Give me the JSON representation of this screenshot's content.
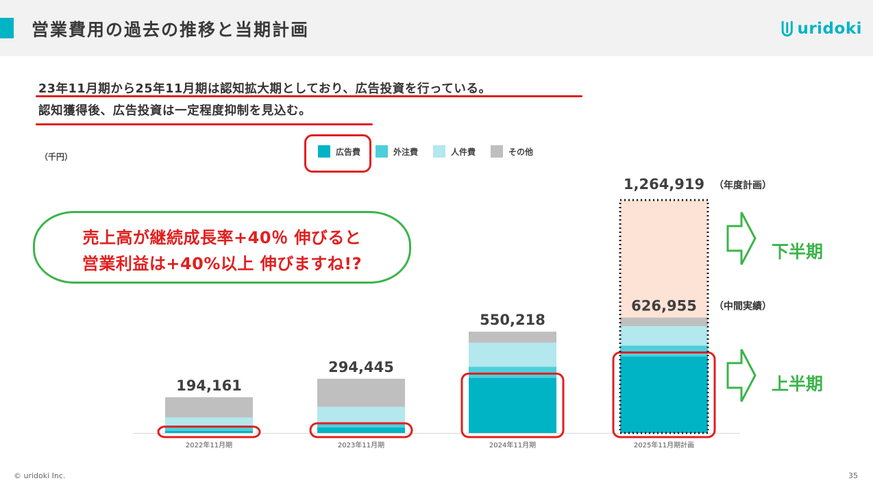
{
  "header": {
    "title": "営業費用の過去の推移と当期計画",
    "brand": "uridoki",
    "accent_color": "#00b4c5",
    "logo_icon": "uridoki-logo-icon"
  },
  "intro": {
    "line1": "23年11月期から25年11月期は認知拡大期としており、広告投資を行っている。",
    "line2": "認知獲得後、広告投資は一定程度抑制を見込む。"
  },
  "highlight_color": "#e02020",
  "callout": {
    "line1": "売上高が継続成長率+40％ 伸びると",
    "line2": "営業利益は+40%以上 伸びますね!?",
    "border_color": "#3cb44b",
    "text_color": "#e02020"
  },
  "footer": {
    "copyright": "© uridoki Inc.",
    "page_number": "35"
  },
  "chart_data": {
    "type": "bar",
    "stacked": true,
    "unit_label": "（千円）",
    "categories": [
      "2022年11月期",
      "2023年11月期",
      "2024年11月期",
      "2025年11月期計画"
    ],
    "series": [
      {
        "name": "広告費",
        "color": "#00b4c5",
        "values": [
          12000,
          30000,
          300000,
          415000
        ]
      },
      {
        "name": "外注費",
        "color": "#4dcfdb",
        "values": [
          20000,
          22000,
          60000,
          60000
        ]
      },
      {
        "name": "人件費",
        "color": "#b2e8ee",
        "values": [
          52000,
          90000,
          130000,
          105000
        ]
      },
      {
        "name": "その他",
        "color": "#bfbfbf",
        "values": [
          110161,
          152445,
          60218,
          46955
        ]
      }
    ],
    "totals": [
      "194,161",
      "294,445",
      "550,218",
      "626,955"
    ],
    "plan": {
      "category": "2025年11月期計画",
      "total_label": "1,264,919",
      "total_value": 1264919,
      "total_note": "（年度計画）",
      "actual_note": "（中間実績）",
      "second_half_label": "下半期",
      "first_half_label": "上半期",
      "second_half_fill": "#fde3d6",
      "half_label_color": "#3cb44b"
    },
    "highlighted_series": "広告費",
    "ylim": [
      0,
      1264919
    ],
    "grid": false,
    "legend_position": "top"
  }
}
